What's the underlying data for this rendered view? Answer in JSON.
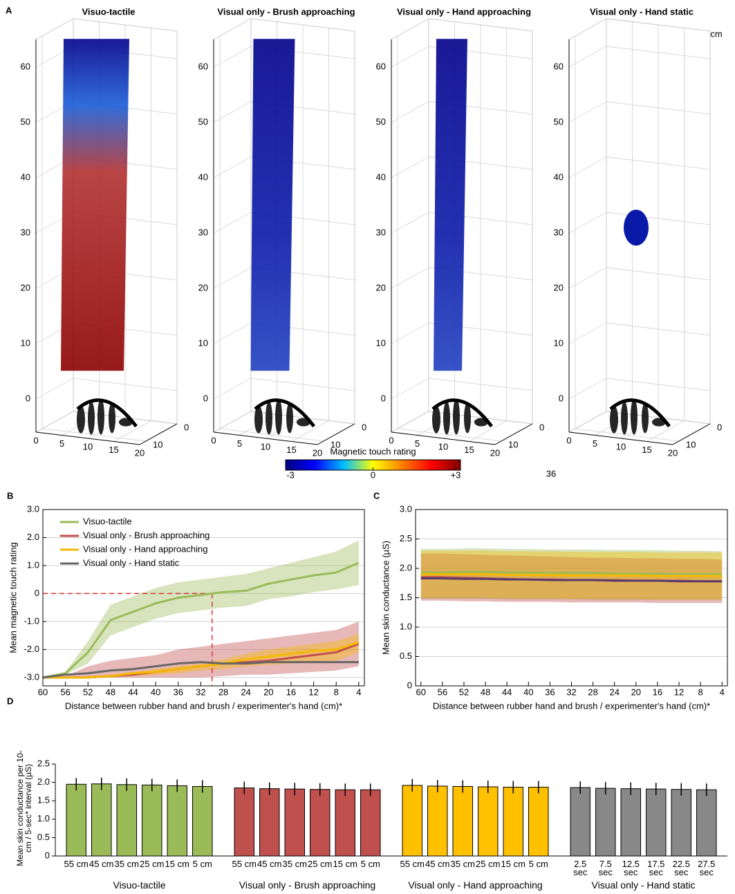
{
  "chart_data": [
    {
      "type": "scatter3d",
      "panel_label": "A",
      "title": "Visuo-tactile",
      "xlim": [
        0,
        20
      ],
      "ylim": [
        0,
        12
      ],
      "zlim": [
        -6,
        65
      ],
      "xticks": [
        0,
        5,
        10,
        15,
        20
      ],
      "yticks": [
        0,
        10
      ],
      "zticks": [
        0,
        10,
        20,
        30,
        40,
        50,
        60
      ],
      "grid": true
    },
    {
      "type": "scatter3d",
      "title": "Visual only - Brush approaching",
      "xlim": [
        0,
        20
      ],
      "ylim": [
        0,
        12
      ],
      "zlim": [
        -6,
        65
      ],
      "xticks": [
        0,
        5,
        10,
        15,
        20
      ],
      "yticks": [
        0,
        10
      ],
      "zticks": [
        0,
        10,
        20,
        30,
        40,
        50,
        60
      ],
      "grid": true
    },
    {
      "type": "scatter3d",
      "title": "Visual only - Hand approaching",
      "xlim": [
        0,
        20
      ],
      "ylim": [
        0,
        12
      ],
      "zlim": [
        -6,
        65
      ],
      "xticks": [
        0,
        5,
        10,
        15,
        20
      ],
      "yticks": [
        0,
        10
      ],
      "zticks": [
        0,
        10,
        20,
        30,
        40,
        50,
        60
      ],
      "grid": true
    },
    {
      "type": "scatter3d",
      "title": "Visual only - Hand static",
      "z_unit": "cm",
      "xlim": [
        0,
        20
      ],
      "ylim": [
        0,
        12
      ],
      "zlim": [
        -6,
        65
      ],
      "xticks": [
        0,
        5,
        10,
        15,
        20
      ],
      "yticks": [
        0,
        10
      ],
      "zticks": [
        0,
        10,
        20,
        30,
        40,
        50,
        60
      ],
      "grid": true
    },
    {
      "type": "colorbar",
      "title": "Magnetic touch rating",
      "annotation": "36",
      "clim": [
        -3,
        3
      ],
      "ticks": [
        -3,
        0,
        {
          "value": 3,
          "label": "+3"
        }
      ],
      "colors": [
        "#00007f",
        "#0000ff",
        "#00bfff",
        "#ffff00",
        "#ff8000",
        "#ff0000",
        "#7f0000"
      ]
    },
    {
      "type": "line",
      "panel_label": "B",
      "xlabel": "Distance between rubber hand and brush / experimenter's hand (cm)*",
      "ylabel": "Mean magnetic touch rating",
      "x": [
        60,
        56,
        52,
        48,
        44,
        40,
        36,
        32,
        28,
        24,
        20,
        16,
        12,
        8,
        4
      ],
      "xlim": [
        60,
        3
      ],
      "xticks": [
        60,
        56,
        52,
        48,
        44,
        40,
        36,
        32,
        28,
        24,
        20,
        16,
        12,
        8,
        4
      ],
      "ylim": [
        -3.3,
        3.0
      ],
      "yticks": [
        {
          "value": -3,
          "label": "-3.0"
        },
        {
          "value": -2,
          "label": "-2.0"
        },
        {
          "value": -1,
          "label": "-1.0"
        },
        0,
        {
          "value": 1,
          "label": "1.0"
        },
        {
          "value": 2,
          "label": "2.0"
        },
        {
          "value": 3,
          "label": "3.0"
        }
      ],
      "grid": true,
      "legend": "upper left",
      "reference": {
        "x": 30,
        "y": 0,
        "color": "#e03030"
      },
      "series": [
        {
          "name": "Visuo-tactile",
          "color": "#9bbb59",
          "values": [
            -3.0,
            -2.85,
            -2.1,
            -0.95,
            -0.65,
            -0.35,
            -0.15,
            -0.05,
            0.05,
            0.1,
            0.35,
            0.5,
            0.65,
            0.75,
            1.1
          ],
          "lower": [
            -3.0,
            -2.9,
            -2.5,
            -1.5,
            -1.2,
            -0.9,
            -0.7,
            -0.6,
            -0.5,
            -0.45,
            -0.2,
            -0.1,
            0.05,
            0.15,
            0.3
          ],
          "upper": [
            -3.0,
            -2.8,
            -1.7,
            -0.4,
            -0.1,
            0.2,
            0.4,
            0.5,
            0.6,
            0.7,
            0.9,
            1.1,
            1.3,
            1.5,
            1.9
          ]
        },
        {
          "name": "Visual only - Brush approaching",
          "color": "#c0504d",
          "values": [
            -3.0,
            -3.0,
            -3.0,
            -2.95,
            -2.9,
            -2.8,
            -2.7,
            -2.6,
            -2.5,
            -2.45,
            -2.4,
            -2.3,
            -2.2,
            -2.1,
            -1.8
          ],
          "lower": [
            -3.0,
            -3.0,
            -3.0,
            -3.0,
            -3.0,
            -3.0,
            -3.0,
            -3.0,
            -2.95,
            -2.9,
            -2.9,
            -2.85,
            -2.8,
            -2.75,
            -2.6
          ],
          "upper": [
            -3.0,
            -2.95,
            -2.6,
            -2.4,
            -2.3,
            -2.2,
            -2.0,
            -1.9,
            -1.8,
            -1.7,
            -1.6,
            -1.5,
            -1.4,
            -1.3,
            -1.0
          ]
        },
        {
          "name": "Visual only - Hand approaching",
          "color": "#f5b800",
          "values": [
            -3.0,
            -3.0,
            -3.0,
            -2.95,
            -2.85,
            -2.8,
            -2.7,
            -2.6,
            -2.5,
            -2.35,
            -2.25,
            -2.15,
            -2.05,
            -2.0,
            -1.75
          ],
          "lower": [
            -3.0,
            -3.0,
            -3.0,
            -3.0,
            -2.95,
            -2.9,
            -2.85,
            -2.75,
            -2.7,
            -2.6,
            -2.55,
            -2.5,
            -2.45,
            -2.4,
            -2.1
          ],
          "upper": [
            -3.0,
            -3.0,
            -2.95,
            -2.9,
            -2.8,
            -2.7,
            -2.6,
            -2.5,
            -2.35,
            -2.15,
            -2.0,
            -1.9,
            -1.8,
            -1.7,
            -1.45
          ]
        },
        {
          "name": "Visual only - Hand static",
          "color": "#666666",
          "values": [
            -3.0,
            -2.9,
            -2.85,
            -2.75,
            -2.7,
            -2.6,
            -2.5,
            -2.45,
            -2.5,
            -2.5,
            -2.45,
            -2.45,
            -2.45,
            -2.45,
            -2.45
          ]
        }
      ]
    },
    {
      "type": "line",
      "panel_label": "C",
      "xlabel": "Distance between rubber hand and brush / experimenter's hand (cm)*",
      "ylabel": "Mean skin conductance (µS)",
      "x": [
        60,
        56,
        52,
        48,
        44,
        40,
        36,
        32,
        28,
        24,
        20,
        16,
        12,
        8,
        4
      ],
      "xlim": [
        61,
        3
      ],
      "xticks": [
        60,
        56,
        52,
        48,
        44,
        40,
        36,
        32,
        28,
        24,
        20,
        16,
        12,
        8,
        4
      ],
      "ylim": [
        0,
        3.0
      ],
      "yticks": [
        0,
        0.5,
        {
          "value": 1,
          "label": "1.0"
        },
        1.5,
        {
          "value": 2,
          "label": "2.0"
        },
        2.5,
        {
          "value": 3,
          "label": "3.0"
        }
      ],
      "grid": true,
      "series": [
        {
          "color": "#9bbb59",
          "values": [
            1.93,
            1.93,
            1.94,
            1.94,
            1.93,
            1.93,
            1.92,
            1.92,
            1.92,
            1.91,
            1.91,
            1.91,
            1.9,
            1.9,
            1.9
          ],
          "lower": [
            1.48,
            1.48,
            1.48,
            1.48,
            1.47,
            1.47,
            1.47,
            1.47,
            1.46,
            1.46,
            1.46,
            1.46,
            1.46,
            1.46,
            1.46
          ],
          "upper": [
            2.33,
            2.33,
            2.34,
            2.34,
            2.33,
            2.33,
            2.32,
            2.32,
            2.32,
            2.31,
            2.31,
            2.31,
            2.3,
            2.3,
            2.29
          ]
        },
        {
          "color": "#c0504d",
          "values": [
            1.85,
            1.85,
            1.84,
            1.83,
            1.82,
            1.81,
            1.81,
            1.8,
            1.8,
            1.8,
            1.79,
            1.79,
            1.79,
            1.78,
            1.78
          ],
          "lower": [
            1.45,
            1.45,
            1.44,
            1.44,
            1.43,
            1.43,
            1.43,
            1.42,
            1.42,
            1.42,
            1.42,
            1.41,
            1.41,
            1.41,
            1.41
          ],
          "upper": [
            2.25,
            2.25,
            2.24,
            2.23,
            2.22,
            2.21,
            2.2,
            2.19,
            2.18,
            2.18,
            2.17,
            2.17,
            2.16,
            2.16,
            2.15
          ]
        },
        {
          "color": "#f5b800",
          "values": [
            1.9,
            1.9,
            1.9,
            1.9,
            1.89,
            1.89,
            1.89,
            1.88,
            1.88,
            1.88,
            1.88,
            1.87,
            1.87,
            1.87,
            1.87
          ],
          "lower": [
            1.5,
            1.5,
            1.5,
            1.5,
            1.49,
            1.49,
            1.49,
            1.48,
            1.48,
            1.48,
            1.48,
            1.47,
            1.47,
            1.47,
            1.47
          ],
          "upper": [
            2.3,
            2.3,
            2.3,
            2.3,
            2.29,
            2.29,
            2.29,
            2.28,
            2.28,
            2.28,
            2.28,
            2.27,
            2.27,
            2.27,
            2.27
          ]
        },
        {
          "color": "#5a3a6a",
          "values": [
            1.83,
            1.83,
            1.82,
            1.82,
            1.81,
            1.81,
            1.8,
            1.8,
            1.8,
            1.79,
            1.79,
            1.79,
            1.78,
            1.78,
            1.78
          ]
        }
      ]
    },
    {
      "type": "bar",
      "panel_label": "D",
      "ylabel": "Mean skin conductance per 10-cm / 5-sec* interval (µS)",
      "ylim": [
        0,
        2.5
      ],
      "yticks": [
        0,
        0.5,
        {
          "value": 1,
          "label": "1.0"
        },
        1.5,
        {
          "value": 2,
          "label": "2.0"
        },
        2.5
      ],
      "groups": [
        {
          "name": "Visuo-tactile",
          "color": "#9bbb59",
          "categories": [
            "55 cm",
            "45 cm",
            "35 cm",
            "25 cm",
            "15 cm",
            "5 cm"
          ],
          "values": [
            1.95,
            1.96,
            1.94,
            1.93,
            1.91,
            1.89
          ],
          "errors": [
            0.17,
            0.17,
            0.17,
            0.17,
            0.17,
            0.17
          ]
        },
        {
          "name": "Visual only - Brush approaching",
          "color": "#c0504d",
          "categories": [
            "55 cm",
            "45 cm",
            "35 cm",
            "25 cm",
            "15 cm",
            "5 cm"
          ],
          "values": [
            1.85,
            1.83,
            1.82,
            1.81,
            1.8,
            1.8
          ],
          "errors": [
            0.17,
            0.17,
            0.17,
            0.17,
            0.17,
            0.17
          ]
        },
        {
          "name": "Visual only - Hand approaching",
          "color": "#ffc000",
          "categories": [
            "55 cm",
            "45 cm",
            "35 cm",
            "25 cm",
            "15 cm",
            "5 cm"
          ],
          "values": [
            1.92,
            1.9,
            1.89,
            1.88,
            1.87,
            1.87
          ],
          "errors": [
            0.17,
            0.17,
            0.17,
            0.17,
            0.17,
            0.17
          ]
        },
        {
          "name": "Visual only - Hand static",
          "color": "#888888",
          "categories": [
            "2.5 sec",
            "7.5 sec",
            "12.5 sec",
            "17.5 sec",
            "22.5 sec",
            "27.5 sec"
          ],
          "values": [
            1.86,
            1.84,
            1.83,
            1.82,
            1.81,
            1.8
          ],
          "errors": [
            0.17,
            0.17,
            0.17,
            0.17,
            0.17,
            0.17
          ]
        }
      ]
    }
  ]
}
